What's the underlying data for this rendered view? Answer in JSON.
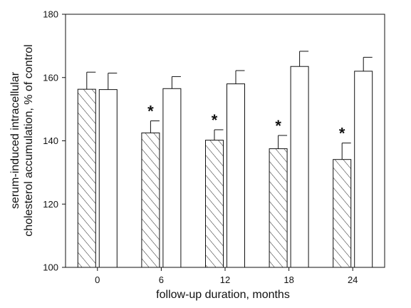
{
  "chart_data": {
    "type": "bar",
    "categories": [
      "0",
      "6",
      "12",
      "18",
      "24"
    ],
    "series": [
      {
        "pattern": "hatched",
        "values": [
          156.3,
          142.5,
          140.2,
          137.5,
          134.1
        ],
        "errors": [
          5.4,
          3.8,
          3.3,
          4.2,
          5.2
        ],
        "significance": [
          "",
          "*",
          "*",
          "*",
          "*"
        ]
      },
      {
        "pattern": "open",
        "values": [
          156.2,
          156.5,
          158.0,
          163.5,
          162.0
        ],
        "errors": [
          5.2,
          3.8,
          4.2,
          4.8,
          4.4
        ]
      }
    ],
    "ylim": [
      100,
      180
    ],
    "yticks": [
      "100",
      "120",
      "140",
      "160",
      "180"
    ],
    "xlabel": "follow-up duration, months",
    "ylabel_line1": "serum-induced intracellular",
    "ylabel_line2": "cholesterol accumulation, % of control",
    "grid": false,
    "legend": "none"
  }
}
